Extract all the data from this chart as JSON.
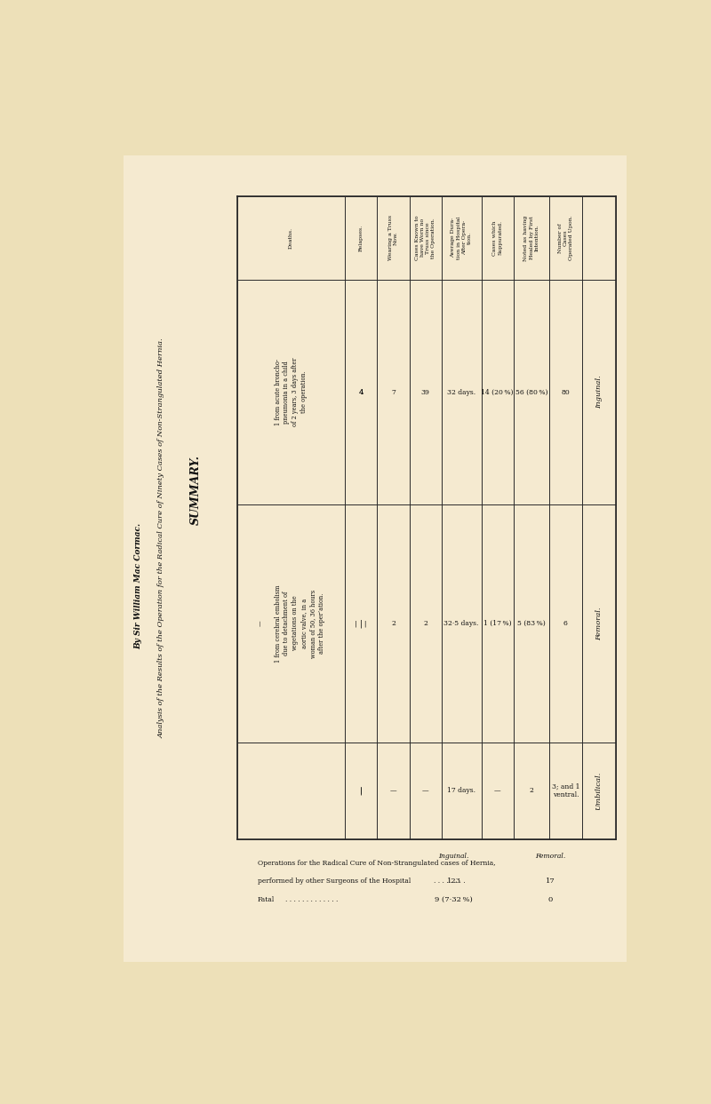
{
  "bg_color": "#ede0b8",
  "page_bg": "#f5ead0",
  "title_main": "SUMMARY.",
  "title_sub1": "Analysis of the Results of the Operation for the Radical Cure of Ninety Cases of Non-Strangulated Hernia.",
  "title_sub2": "By Sir William Mac Cormac.",
  "col_headers": [
    "Deaths.",
    "Relapses.",
    "Wearing a Truss\nNow.",
    "Cases Known to\nhave Worn no\nTruss since\nthe Operation.",
    "Average Dura-\ntion in Hospital\nAfter Opera-\ntion.",
    "Cases which\nSuppurated.",
    "Noted as having\nHealed by First\nIntention.",
    "Number of\nCases\nOperated Upon."
  ],
  "row_labels": [
    "Inguinal.",
    "Femoral.",
    "Umbilical."
  ],
  "data": [
    [
      "1 from acute broncho-\npneumonia in a child\nof 2 years, 3 days after\nthe operation.",
      "4",
      "7",
      "39",
      "32 days.",
      "14 (20 %)",
      "56 (80 %)",
      "80"
    ],
    [
      "—\n\n1 from cerebral embolism\ndue to detachment of\nvegetations on the\naortic valve, in a\nwoman of 50, 36 hours\nafter the oper’ation.",
      "—   |",
      "2",
      "2",
      "32·5 days.",
      "1 (17 %)",
      "5 (83 %)",
      "6"
    ],
    [
      "",
      "—   |",
      "—",
      "—",
      "17 days.",
      "—",
      "2",
      "3; and 1\nventral."
    ]
  ],
  "footer_text1": "Operations for the Radical Cure of Non-Strangulated cases of Hernia,",
  "footer_text2": "performed by other Surgeons of the Hospital",
  "footer_text3": "Fatal",
  "footer_inguinal_label": "Inguinal.",
  "footer_femoral_label": "Femoral.",
  "footer_inguinal_vals": [
    "123",
    "9 (7·32 %)"
  ],
  "footer_femoral_vals": [
    "17",
    "0"
  ]
}
